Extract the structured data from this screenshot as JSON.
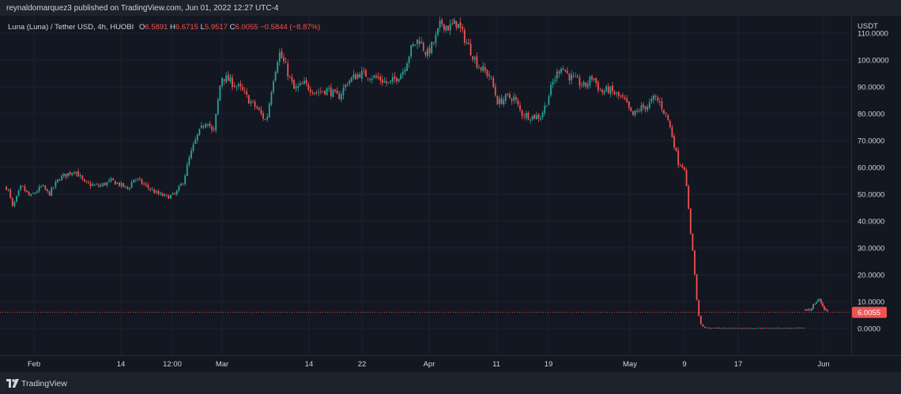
{
  "header": {
    "published_text": "reynaldomarquez3 published on TradingView.com, Jun 01, 2022 12:27 UTC-4"
  },
  "legend": {
    "symbol": "Luna  (Luna)  / Tether USD, 4h, HUOBI",
    "o_label": "O",
    "o_value": "6.5891",
    "h_label": "H",
    "h_value": "6.6715",
    "l_label": "L",
    "l_value": "5.9517",
    "c_label": "C",
    "c_value": "6.0055",
    "change": "−0.5844 (−8.87%)"
  },
  "currency": "USDT",
  "footer": {
    "brand": "TradingView",
    "logo_icon": "tradingview-logo-icon"
  },
  "colors": {
    "up": "#26a69a",
    "down": "#ef5350",
    "background": "#131722",
    "grid": "#1e222d",
    "price_line": "#ef5350"
  },
  "chart_data": {
    "type": "candlestick",
    "series_name": "Luna / Tether USD, 4h, HUOBI",
    "ylim": [
      -8,
      112
    ],
    "y_ticks": [
      "110.0000",
      "100.0000",
      "90.0000",
      "80.0000",
      "70.0000",
      "60.0000",
      "50.0000",
      "40.0000",
      "30.0000",
      "20.0000",
      "10.0000",
      "0.0000"
    ],
    "x_labels": [
      "Feb",
      "14",
      "12:00",
      "Mar",
      "14",
      "22",
      "Apr",
      "11",
      "19",
      "May",
      "9",
      "17",
      "Jun"
    ],
    "last_price": 6.0055,
    "last_price_label": "6.0055",
    "path": [
      [
        0,
        55
      ],
      [
        10,
        52
      ],
      [
        16,
        45
      ],
      [
        27,
        53
      ],
      [
        38,
        49
      ],
      [
        53,
        53
      ],
      [
        62,
        50
      ],
      [
        75,
        56
      ],
      [
        95,
        59
      ],
      [
        107,
        54
      ],
      [
        125,
        53
      ],
      [
        142,
        55
      ],
      [
        162,
        52
      ],
      [
        170,
        56
      ],
      [
        185,
        53
      ],
      [
        200,
        50
      ],
      [
        212,
        49
      ],
      [
        222,
        50
      ],
      [
        232,
        55
      ],
      [
        240,
        64
      ],
      [
        250,
        72
      ],
      [
        262,
        78
      ],
      [
        270,
        72
      ],
      [
        280,
        94
      ],
      [
        292,
        92
      ],
      [
        305,
        89
      ],
      [
        315,
        85
      ],
      [
        325,
        82
      ],
      [
        337,
        77
      ],
      [
        345,
        92
      ],
      [
        353,
        103
      ],
      [
        362,
        97
      ],
      [
        372,
        89
      ],
      [
        385,
        91
      ],
      [
        400,
        88
      ],
      [
        415,
        89
      ],
      [
        428,
        86
      ],
      [
        440,
        92
      ],
      [
        455,
        95
      ],
      [
        470,
        94
      ],
      [
        480,
        93
      ],
      [
        492,
        91
      ],
      [
        500,
        93
      ],
      [
        510,
        96
      ],
      [
        520,
        104
      ],
      [
        530,
        108
      ],
      [
        540,
        102
      ],
      [
        550,
        107
      ],
      [
        558,
        114
      ],
      [
        568,
        112
      ],
      [
        578,
        114
      ],
      [
        588,
        108
      ],
      [
        598,
        102
      ],
      [
        605,
        98
      ],
      [
        620,
        94
      ],
      [
        630,
        84
      ],
      [
        640,
        86
      ],
      [
        650,
        86
      ],
      [
        660,
        80
      ],
      [
        672,
        79
      ],
      [
        684,
        79
      ],
      [
        690,
        83
      ],
      [
        700,
        92
      ],
      [
        710,
        98
      ],
      [
        720,
        94
      ],
      [
        730,
        92
      ],
      [
        740,
        90
      ],
      [
        750,
        94
      ],
      [
        760,
        88
      ],
      [
        770,
        89
      ],
      [
        780,
        87
      ],
      [
        790,
        85
      ],
      [
        800,
        79
      ],
      [
        810,
        82
      ],
      [
        820,
        83
      ],
      [
        828,
        86
      ],
      [
        835,
        84
      ],
      [
        845,
        78
      ],
      [
        852,
        70
      ],
      [
        858,
        62
      ],
      [
        866,
        60
      ],
      [
        870,
        48
      ],
      [
        874,
        35
      ],
      [
        877,
        28
      ],
      [
        880,
        16
      ],
      [
        883,
        6
      ],
      [
        886,
        2
      ],
      [
        890,
        0.3
      ],
      [
        900,
        0.1
      ],
      [
        1018,
        0.1
      ],
      [
        1019,
        7
      ],
      [
        1025,
        7
      ],
      [
        1030,
        9
      ],
      [
        1033,
        10
      ],
      [
        1036,
        11
      ],
      [
        1040,
        9
      ],
      [
        1044,
        7
      ],
      [
        1048,
        6
      ]
    ]
  }
}
